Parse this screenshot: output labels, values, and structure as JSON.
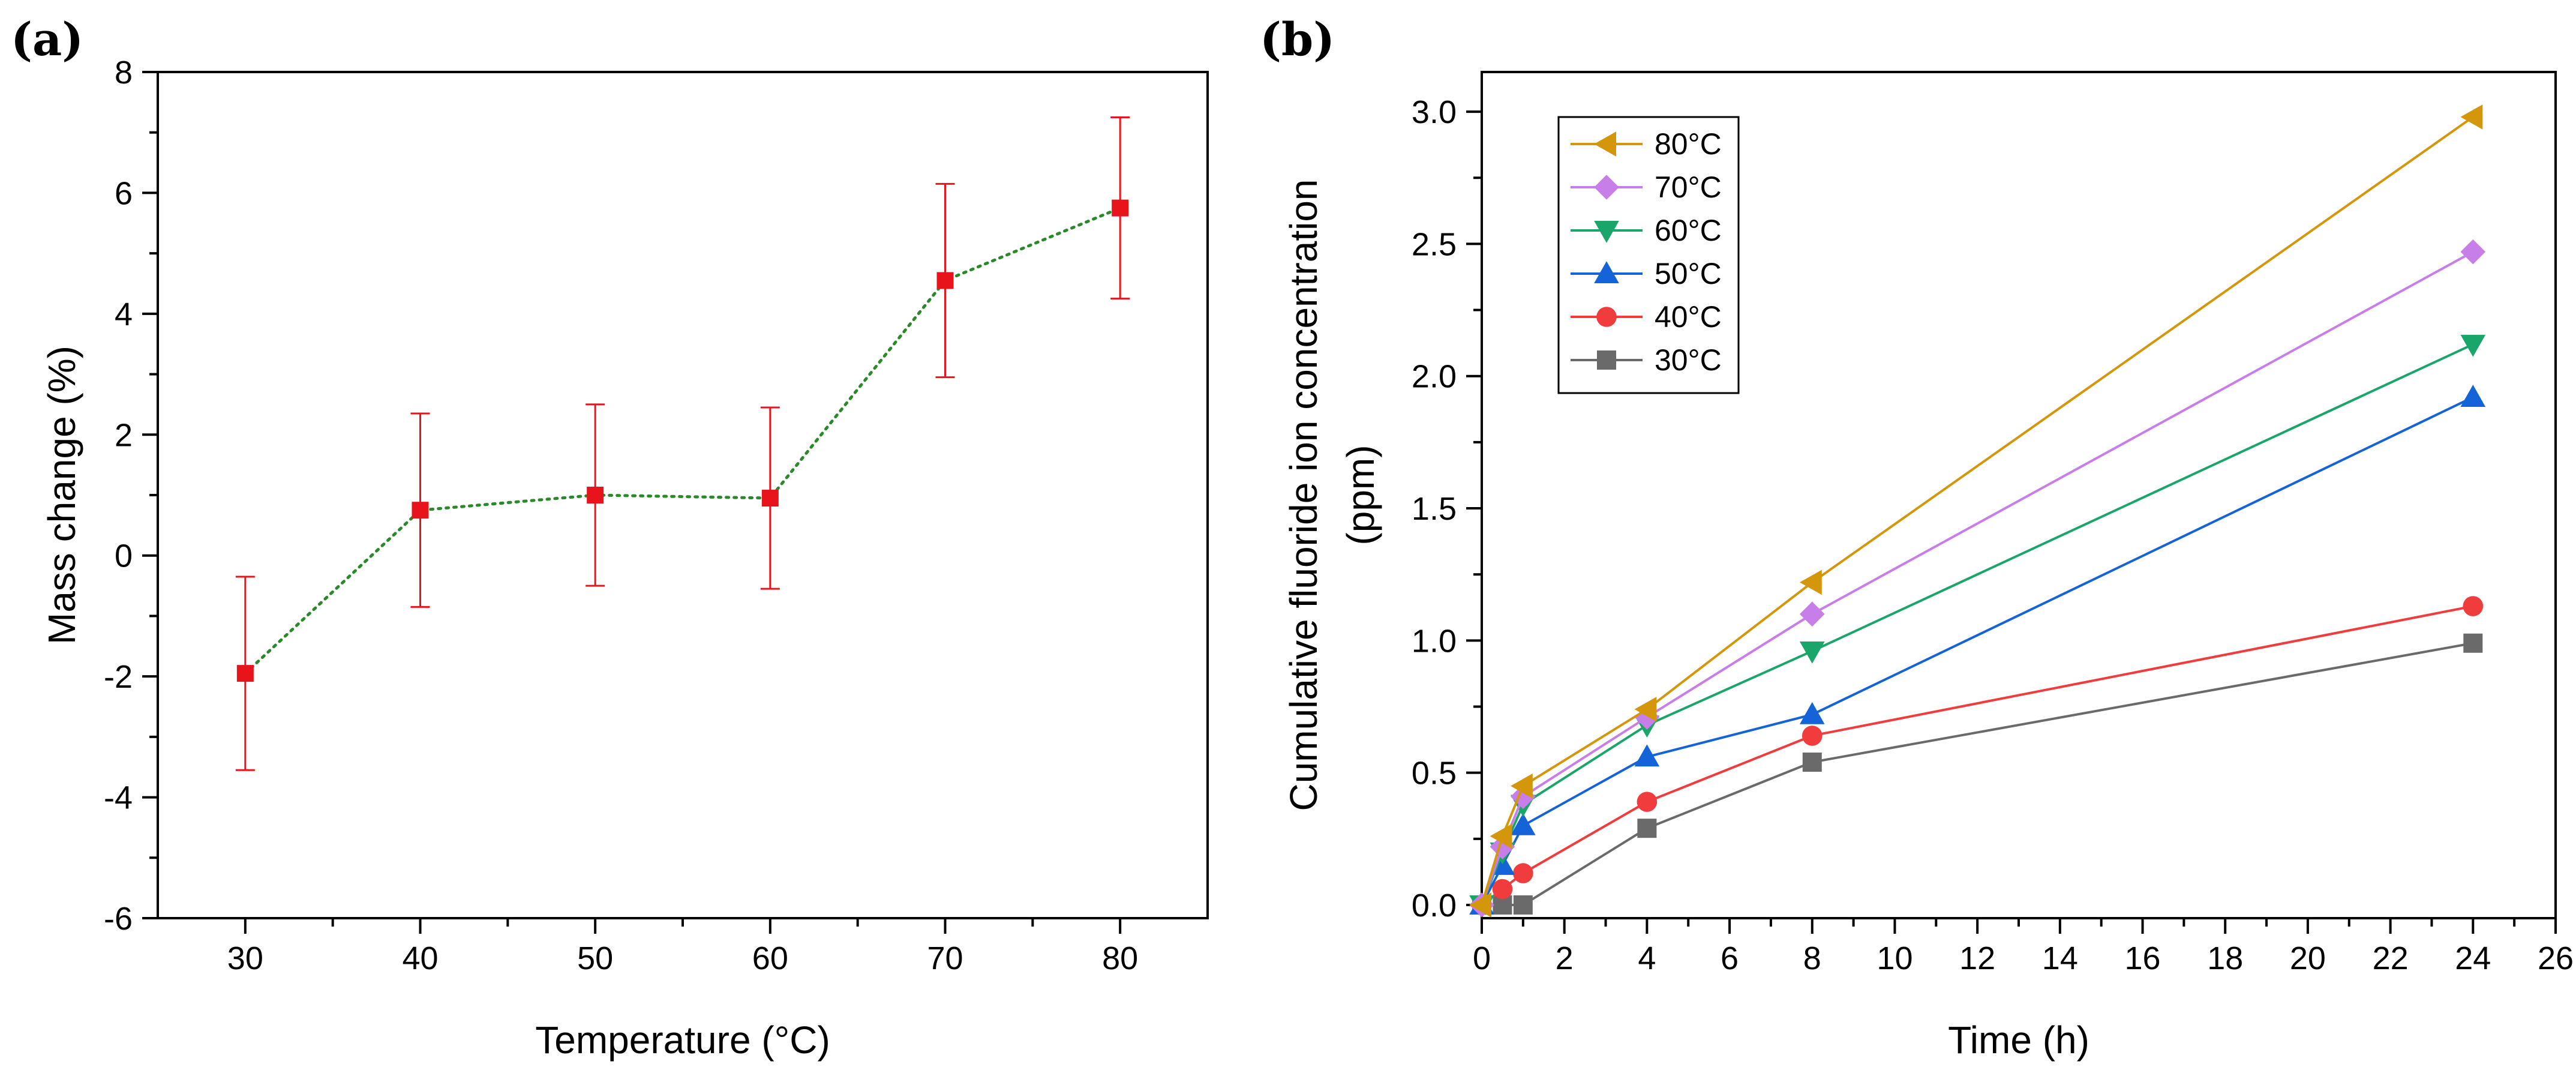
{
  "chart_data": [
    {
      "panel": "(a)",
      "type": "scatter",
      "title": "",
      "xlabel": "Temperature (°C)",
      "ylabel": "Mass change (%)",
      "xlim": [
        25,
        85
      ],
      "ylim": [
        -6,
        8
      ],
      "x_major_ticks": [
        30,
        40,
        50,
        60,
        70,
        80
      ],
      "x_tick_labels": [
        "30",
        "40",
        "50",
        "60",
        "70",
        "80"
      ],
      "y_major_ticks": [
        -6,
        -4,
        -2,
        0,
        2,
        4,
        6,
        8
      ],
      "y_tick_labels": [
        "-6",
        "-4",
        "-2",
        "0",
        "2",
        "4",
        "6",
        "8"
      ],
      "grid": false,
      "series": [
        {
          "name": "Mass change",
          "x": [
            30,
            40,
            50,
            60,
            70,
            80
          ],
          "y": [
            -1.95,
            0.75,
            1.0,
            0.95,
            4.55,
            5.75
          ],
          "err": [
            1.6,
            1.6,
            1.5,
            1.5,
            1.6,
            1.5
          ],
          "marker": "square",
          "color": "#e8141c",
          "line_color": "#2a8a2a",
          "line_style": "dotted"
        }
      ]
    },
    {
      "panel": "(b)",
      "type": "line",
      "title": "",
      "xlabel": "Time (h)",
      "ylabel_line1": "Cumulative fluoride ion concentration",
      "ylabel_line2": "(ppm)",
      "xlim": [
        0,
        26
      ],
      "ylim": [
        -0.05,
        3.15
      ],
      "x_major_ticks": [
        0,
        2,
        4,
        6,
        8,
        10,
        12,
        14,
        16,
        18,
        20,
        22,
        24,
        26
      ],
      "x_tick_labels": [
        "0",
        "2",
        "4",
        "6",
        "8",
        "10",
        "12",
        "14",
        "16",
        "18",
        "20",
        "22",
        "24",
        "26"
      ],
      "y_major_ticks": [
        0.0,
        0.5,
        1.0,
        1.5,
        2.0,
        2.5,
        3.0
      ],
      "y_tick_labels": [
        "0.0",
        "0.5",
        "1.0",
        "1.5",
        "2.0",
        "2.5",
        "3.0"
      ],
      "grid": false,
      "legend_position": "top-left",
      "x": [
        0,
        0.5,
        1,
        4,
        8,
        24
      ],
      "series": [
        {
          "name": "80°C",
          "values": [
            0.0,
            0.26,
            0.45,
            0.74,
            1.22,
            2.98
          ],
          "color": "#d4960a",
          "marker": "triangle-left"
        },
        {
          "name": "70°C",
          "values": [
            0.0,
            0.22,
            0.41,
            0.71,
            1.1,
            2.47
          ],
          "color": "#c77ee8",
          "marker": "diamond"
        },
        {
          "name": "60°C",
          "values": [
            0.0,
            0.2,
            0.38,
            0.68,
            0.96,
            2.12
          ],
          "color": "#1aa66a",
          "marker": "triangle-down"
        },
        {
          "name": "50°C",
          "values": [
            0.0,
            0.15,
            0.3,
            0.56,
            0.72,
            1.92
          ],
          "color": "#1463d8",
          "marker": "triangle-up"
        },
        {
          "name": "40°C",
          "values": [
            0.0,
            0.06,
            0.12,
            0.39,
            0.64,
            1.13
          ],
          "color": "#f03c3c",
          "marker": "circle"
        },
        {
          "name": "30°C",
          "values": [
            0.0,
            0.0,
            0.0,
            0.29,
            0.54,
            0.99
          ],
          "color": "#6a6a6a",
          "marker": "square"
        }
      ]
    }
  ]
}
